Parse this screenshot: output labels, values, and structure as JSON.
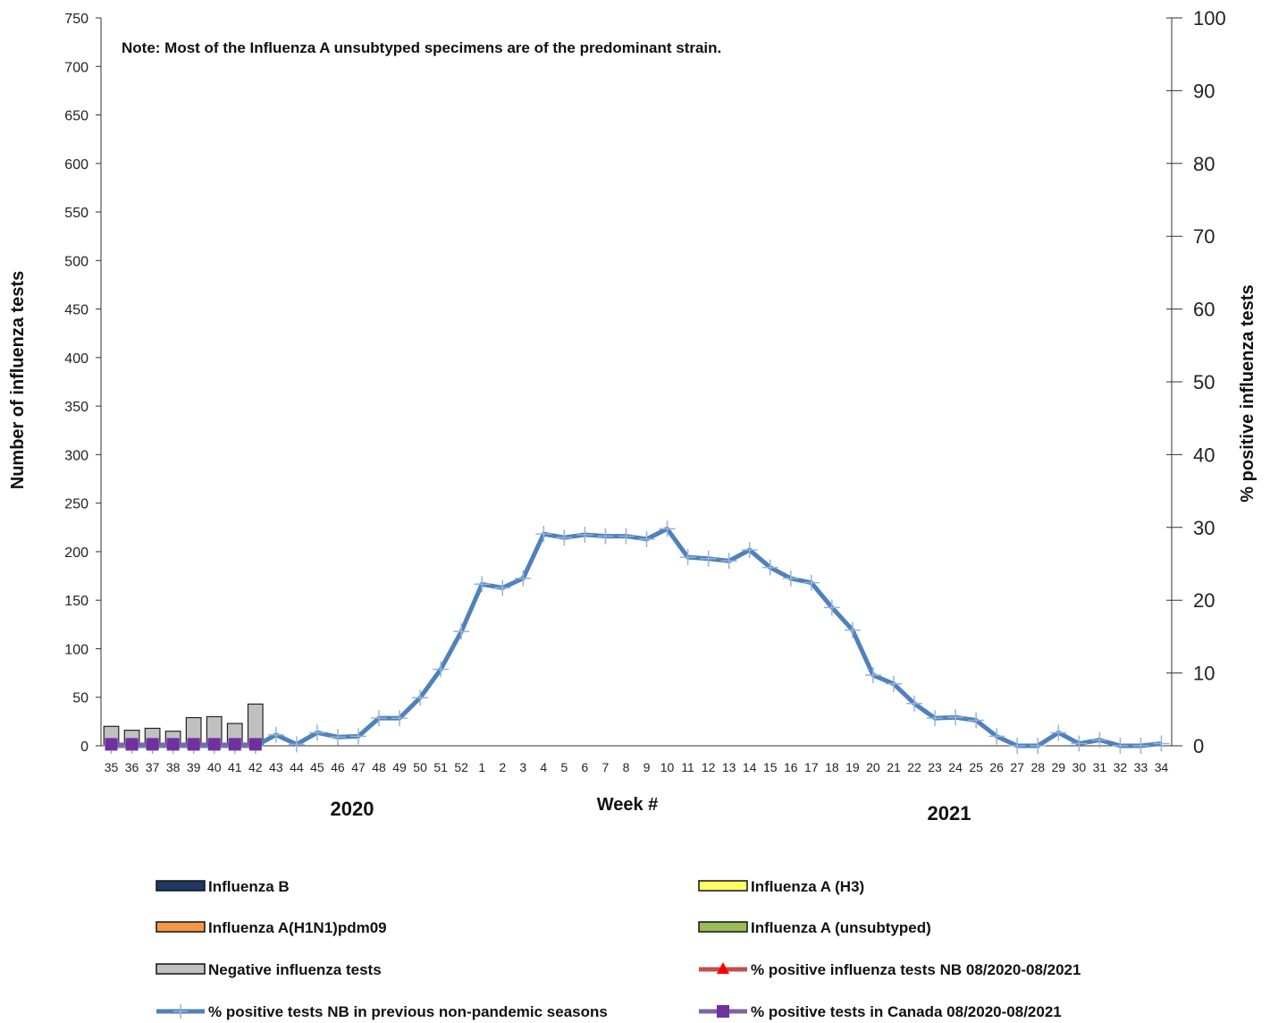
{
  "chart_data": {
    "type": "bar",
    "note": "Note: Most of the  Influenza A unsubtyped specimens are of the predominant strain.",
    "xlabel": "Week #",
    "ylabel_left": "Number of influenza tests",
    "ylabel_right": "% positive influenza tests",
    "year_labels": [
      "2020",
      "2021"
    ],
    "y_left_range": [
      0,
      750
    ],
    "y_left_ticks": [
      "0",
      "50",
      "100",
      "150",
      "200",
      "250",
      "300",
      "350",
      "400",
      "450",
      "500",
      "550",
      "600",
      "650",
      "700",
      "750"
    ],
    "y_right_range": [
      0,
      100
    ],
    "y_right_ticks": [
      "0",
      "10",
      "20",
      "30",
      "40",
      "50",
      "60",
      "70",
      "80",
      "90",
      "100"
    ],
    "categories": [
      "35",
      "36",
      "37",
      "38",
      "39",
      "40",
      "41",
      "42",
      "43",
      "44",
      "45",
      "46",
      "47",
      "48",
      "49",
      "50",
      "51",
      "52",
      "1",
      "2",
      "3",
      "4",
      "5",
      "6",
      "7",
      "8",
      "9",
      "10",
      "11",
      "12",
      "13",
      "14",
      "15",
      "16",
      "17",
      "18",
      "19",
      "20",
      "21",
      "22",
      "23",
      "24",
      "25",
      "26",
      "27",
      "28",
      "29",
      "30",
      "31",
      "32",
      "33",
      "34"
    ],
    "bars": {
      "name": "Negative influenza tests",
      "color": "#c0c0c0",
      "values": [
        20,
        16,
        18,
        15,
        29,
        30,
        23,
        43
      ]
    },
    "lines": [
      {
        "name": "% positive tests NB in previous non-pandemic seasons",
        "color": "#4f81bd",
        "values": [
          0,
          0,
          0,
          0,
          0,
          0,
          0,
          0,
          1.5,
          0.2,
          1.8,
          1.2,
          1.3,
          3.8,
          3.8,
          6.6,
          10.5,
          15.7,
          22.2,
          21.7,
          23,
          29.1,
          28.6,
          29,
          28.8,
          28.8,
          28.4,
          29.8,
          25.9,
          25.7,
          25.4,
          26.9,
          24.5,
          23,
          22.4,
          19,
          15.9,
          9.7,
          8.5,
          5.8,
          3.8,
          3.9,
          3.5,
          1.3,
          0,
          0,
          1.8,
          0.3,
          0.8,
          0,
          0,
          0.3
        ]
      },
      {
        "name": "% positive tests  in Canada 08/2020-08/2021",
        "color": "#7030a0",
        "values": [
          0.2,
          0.2,
          0.2,
          0.2,
          0.2,
          0.2,
          0.2,
          0.2
        ]
      }
    ],
    "legend": [
      {
        "label": "Influenza B",
        "kind": "bar",
        "color": "#1f3864"
      },
      {
        "label": "Influenza A (H3)",
        "kind": "bar",
        "color": "#ffff66"
      },
      {
        "label": "Influenza A(H1N1)pdm09",
        "kind": "bar",
        "color": "#f79646"
      },
      {
        "label": "Influenza A (unsubtyped)",
        "kind": "bar",
        "color": "#9bbb59"
      },
      {
        "label": "Negative influenza tests",
        "kind": "bar",
        "color": "#c0c0c0"
      },
      {
        "label": "% positive influenza tests NB 08/2020-08/2021",
        "kind": "line-triangle",
        "color": "#c0504d",
        "marker_color": "#ff0000"
      },
      {
        "label": "% positive tests NB in previous non-pandemic seasons",
        "kind": "line-plus",
        "color": "#4f81bd",
        "marker_color": "#95b3d7"
      },
      {
        "label": "% positive tests  in Canada 08/2020-08/2021",
        "kind": "line-square",
        "color": "#8064a2",
        "marker_color": "#7030a0"
      }
    ]
  }
}
